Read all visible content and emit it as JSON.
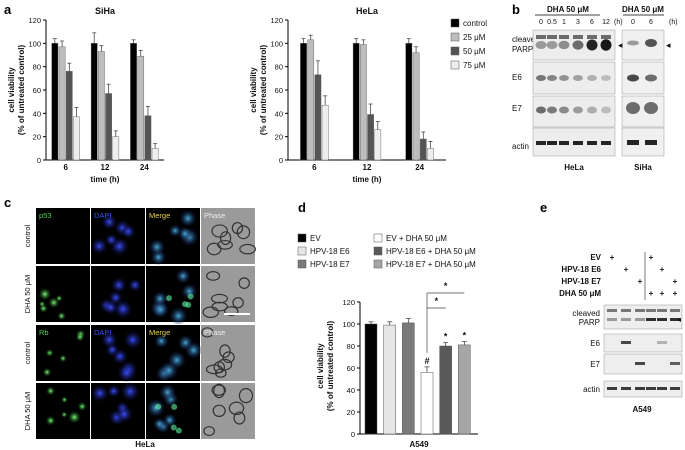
{
  "panel_letters": [
    "a",
    "b",
    "c",
    "d",
    "e"
  ],
  "panel_a": {
    "y_label_1": "cell viability",
    "y_label_2": "(% of untreated control)",
    "x_label": "time (h)",
    "legend": [
      "control",
      "25 μM",
      "50 μM",
      "75 μM"
    ],
    "colors": [
      "#000000",
      "#bdbdbd",
      "#555555",
      "#eeeeee"
    ]
  },
  "panel_b": {
    "header": "DHA 50 μM",
    "hela_times": [
      "0",
      "0.5",
      "1",
      "3",
      "6",
      "12"
    ],
    "siha_times": [
      "0",
      "6"
    ],
    "unit": "(h)",
    "rows": [
      "cleaved PARP",
      "E6",
      "E7",
      "actin"
    ],
    "hela_label": "HeLa",
    "siha_label": "SiHa",
    "arrow": "◂"
  },
  "panel_c": {
    "top_cols": [
      "p53",
      "DAPI",
      "Merge",
      "Phase"
    ],
    "bottom_cols": [
      "Rb",
      "DAPI",
      "Merge",
      "Phase"
    ],
    "rows": [
      "control",
      "DHA 50 μM",
      "control",
      "DHA 50 μM"
    ],
    "cell_label": "HeLa"
  },
  "panel_d": {
    "legend": [
      "EV",
      "HPV-18 E6",
      "HPV-18 E7",
      "EV + DHA 50 μM",
      "HPV-18 E6 + DHA 50 μM",
      "HPV-18 E7 + DHA 50 μM"
    ],
    "y_label_1": "cell viability",
    "y_label_2": "(% of untreated control)",
    "x_label": "A549",
    "marks": [
      "#",
      "*",
      "*"
    ],
    "sig_marks": [
      "*",
      "*"
    ]
  },
  "panel_e": {
    "row_labels": [
      "EV",
      "HPV-18 E6",
      "HPV-18 E7",
      "DHA 50 μM"
    ],
    "plus_grid": [
      [
        "+",
        "",
        "",
        "+",
        "",
        ""
      ],
      [
        "",
        "+",
        "",
        "",
        "+",
        ""
      ],
      [
        "",
        "",
        "+",
        "",
        "",
        "+"
      ],
      [
        "",
        "",
        "",
        "+",
        "+",
        "+"
      ]
    ],
    "blot_rows": [
      "cleaved PARP",
      "E6",
      "E7",
      "actin"
    ],
    "cell_label": "A549",
    "arrow": "◂"
  },
  "chart_data": [
    {
      "type": "bar",
      "title": "SiHa",
      "categories": [
        "6",
        "12",
        "24"
      ],
      "xlabel": "time (h)",
      "ylabel": "cell viability (% of untreated control)",
      "ylim": [
        0,
        120
      ],
      "series": [
        {
          "name": "control",
          "values": [
            100,
            100,
            100
          ],
          "errors": [
            4,
            9,
            3
          ]
        },
        {
          "name": "25 μM",
          "values": [
            97,
            93,
            89
          ],
          "errors": [
            5,
            5,
            5
          ]
        },
        {
          "name": "50 μM",
          "values": [
            76,
            57,
            38
          ],
          "errors": [
            7,
            8,
            8
          ]
        },
        {
          "name": "75 μM",
          "values": [
            37,
            20,
            10
          ],
          "errors": [
            8,
            5,
            4
          ]
        }
      ]
    },
    {
      "type": "bar",
      "title": "HeLa",
      "categories": [
        "6",
        "12",
        "24"
      ],
      "xlabel": "time (h)",
      "ylabel": "cell viability (% of untreated control)",
      "ylim": [
        0,
        120
      ],
      "series": [
        {
          "name": "control",
          "values": [
            100,
            100,
            100
          ],
          "errors": [
            4,
            4,
            4
          ]
        },
        {
          "name": "25 μM",
          "values": [
            103,
            99,
            92
          ],
          "errors": [
            4,
            4,
            5
          ]
        },
        {
          "name": "50 μM",
          "values": [
            73,
            39,
            18
          ],
          "errors": [
            12,
            9,
            6
          ]
        },
        {
          "name": "75 μM",
          "values": [
            47,
            26,
            10
          ],
          "errors": [
            8,
            7,
            6
          ]
        }
      ]
    },
    {
      "type": "bar",
      "title": "",
      "categories": [
        "EV",
        "HPV-18 E6",
        "HPV-18 E7",
        "EV + DHA 50 μM",
        "HPV-18 E6 + DHA 50 μM",
        "HPV-18 E7 + DHA 50 μM"
      ],
      "xlabel": "A549",
      "ylabel": "cell viability (% of untreated control)",
      "ylim": [
        0,
        120
      ],
      "series": [
        {
          "name": "",
          "values": [
            100,
            99,
            101,
            56,
            80,
            81
          ],
          "errors": [
            2,
            3,
            4,
            5,
            3,
            3
          ]
        }
      ],
      "colors": [
        "#000000",
        "#e6e6e6",
        "#7a7a7a",
        "#ffffff",
        "#595959",
        "#a6a6a6"
      ]
    }
  ]
}
